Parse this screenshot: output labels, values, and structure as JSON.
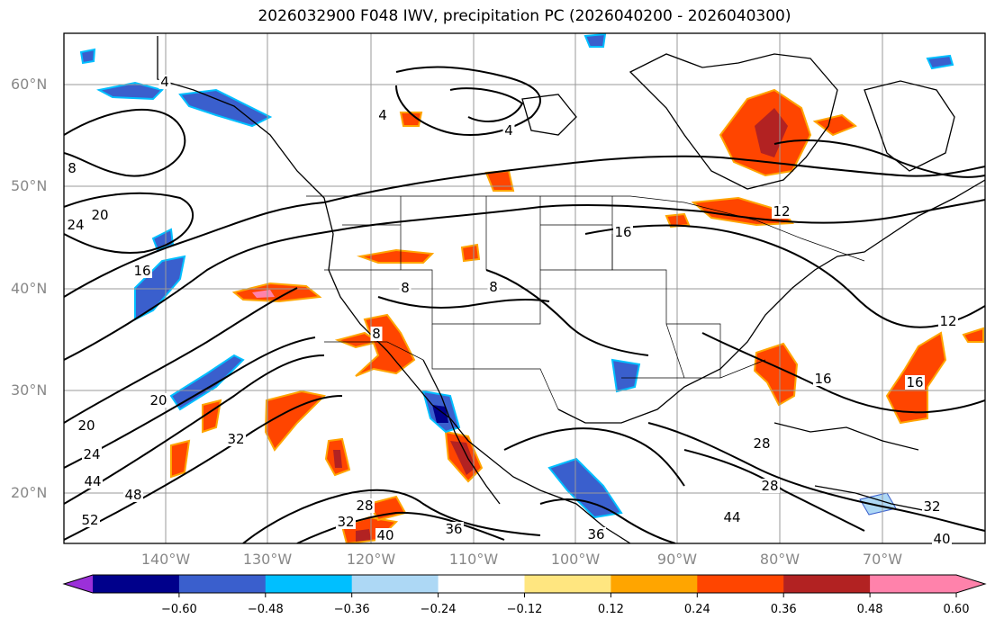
{
  "title": "2026032900 F048 IWV, precipitation PC (2026040200 - 2026040300)",
  "map": {
    "lat_labels": [
      "60°N",
      "50°N",
      "40°N",
      "30°N",
      "20°N"
    ],
    "lon_labels": [
      "140°W",
      "130°W",
      "120°W",
      "110°W",
      "100°W",
      "90°W",
      "80°W",
      "70°W"
    ],
    "contour_labels": [
      "4",
      "4",
      "4",
      "8",
      "8",
      "8",
      "8",
      "12",
      "12",
      "16",
      "16",
      "16",
      "16",
      "20",
      "20",
      "20",
      "24",
      "24",
      "28",
      "28",
      "28",
      "32",
      "32",
      "32",
      "36",
      "36",
      "40",
      "40",
      "44",
      "44",
      "48",
      "52"
    ]
  },
  "colorbar": {
    "ticks": [
      "−0.60",
      "−0.48",
      "−0.36",
      "−0.24",
      "−0.12",
      "0.12",
      "0.24",
      "0.36",
      "0.48",
      "0.60"
    ],
    "colors": [
      "#9b30d9",
      "#00008b",
      "#3a5fcd",
      "#00bfff",
      "#add8f5",
      "#ffffff",
      "#ffe680",
      "#ffa500",
      "#ff4500",
      "#b22222",
      "#ff82ab",
      "#ff82ab"
    ]
  }
}
